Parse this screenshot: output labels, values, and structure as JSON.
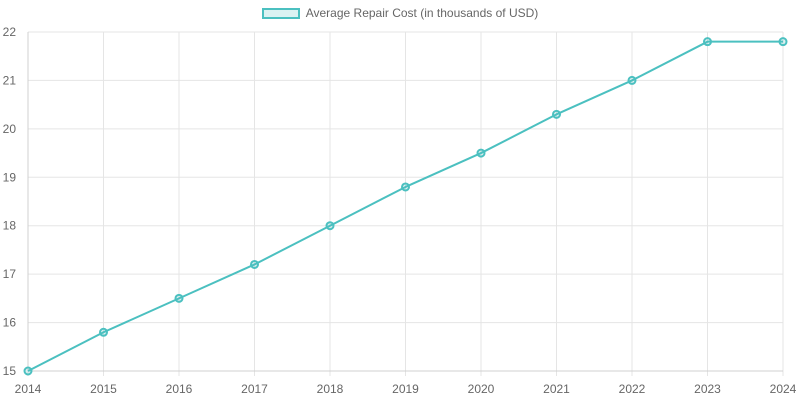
{
  "chart_data": {
    "type": "line",
    "x": [
      "2014",
      "2015",
      "2016",
      "2017",
      "2018",
      "2019",
      "2020",
      "2021",
      "2022",
      "2023",
      "2024"
    ],
    "series": [
      {
        "name": "Average Repair Cost (in thousands of USD)",
        "values": [
          15,
          15.8,
          16.5,
          17.2,
          18,
          18.8,
          19.5,
          20.3,
          21,
          21.8,
          21.8
        ]
      }
    ],
    "ylim": [
      15,
      22
    ],
    "yticks": [
      "15",
      "16",
      "17",
      "18",
      "19",
      "20",
      "21",
      "22"
    ],
    "grid": true,
    "legend": "top-center",
    "colors": {
      "line": "#4bc0c0",
      "fill": "rgba(75,192,192,0.2)",
      "grid": "#e5e5e5",
      "text": "#666666"
    }
  }
}
